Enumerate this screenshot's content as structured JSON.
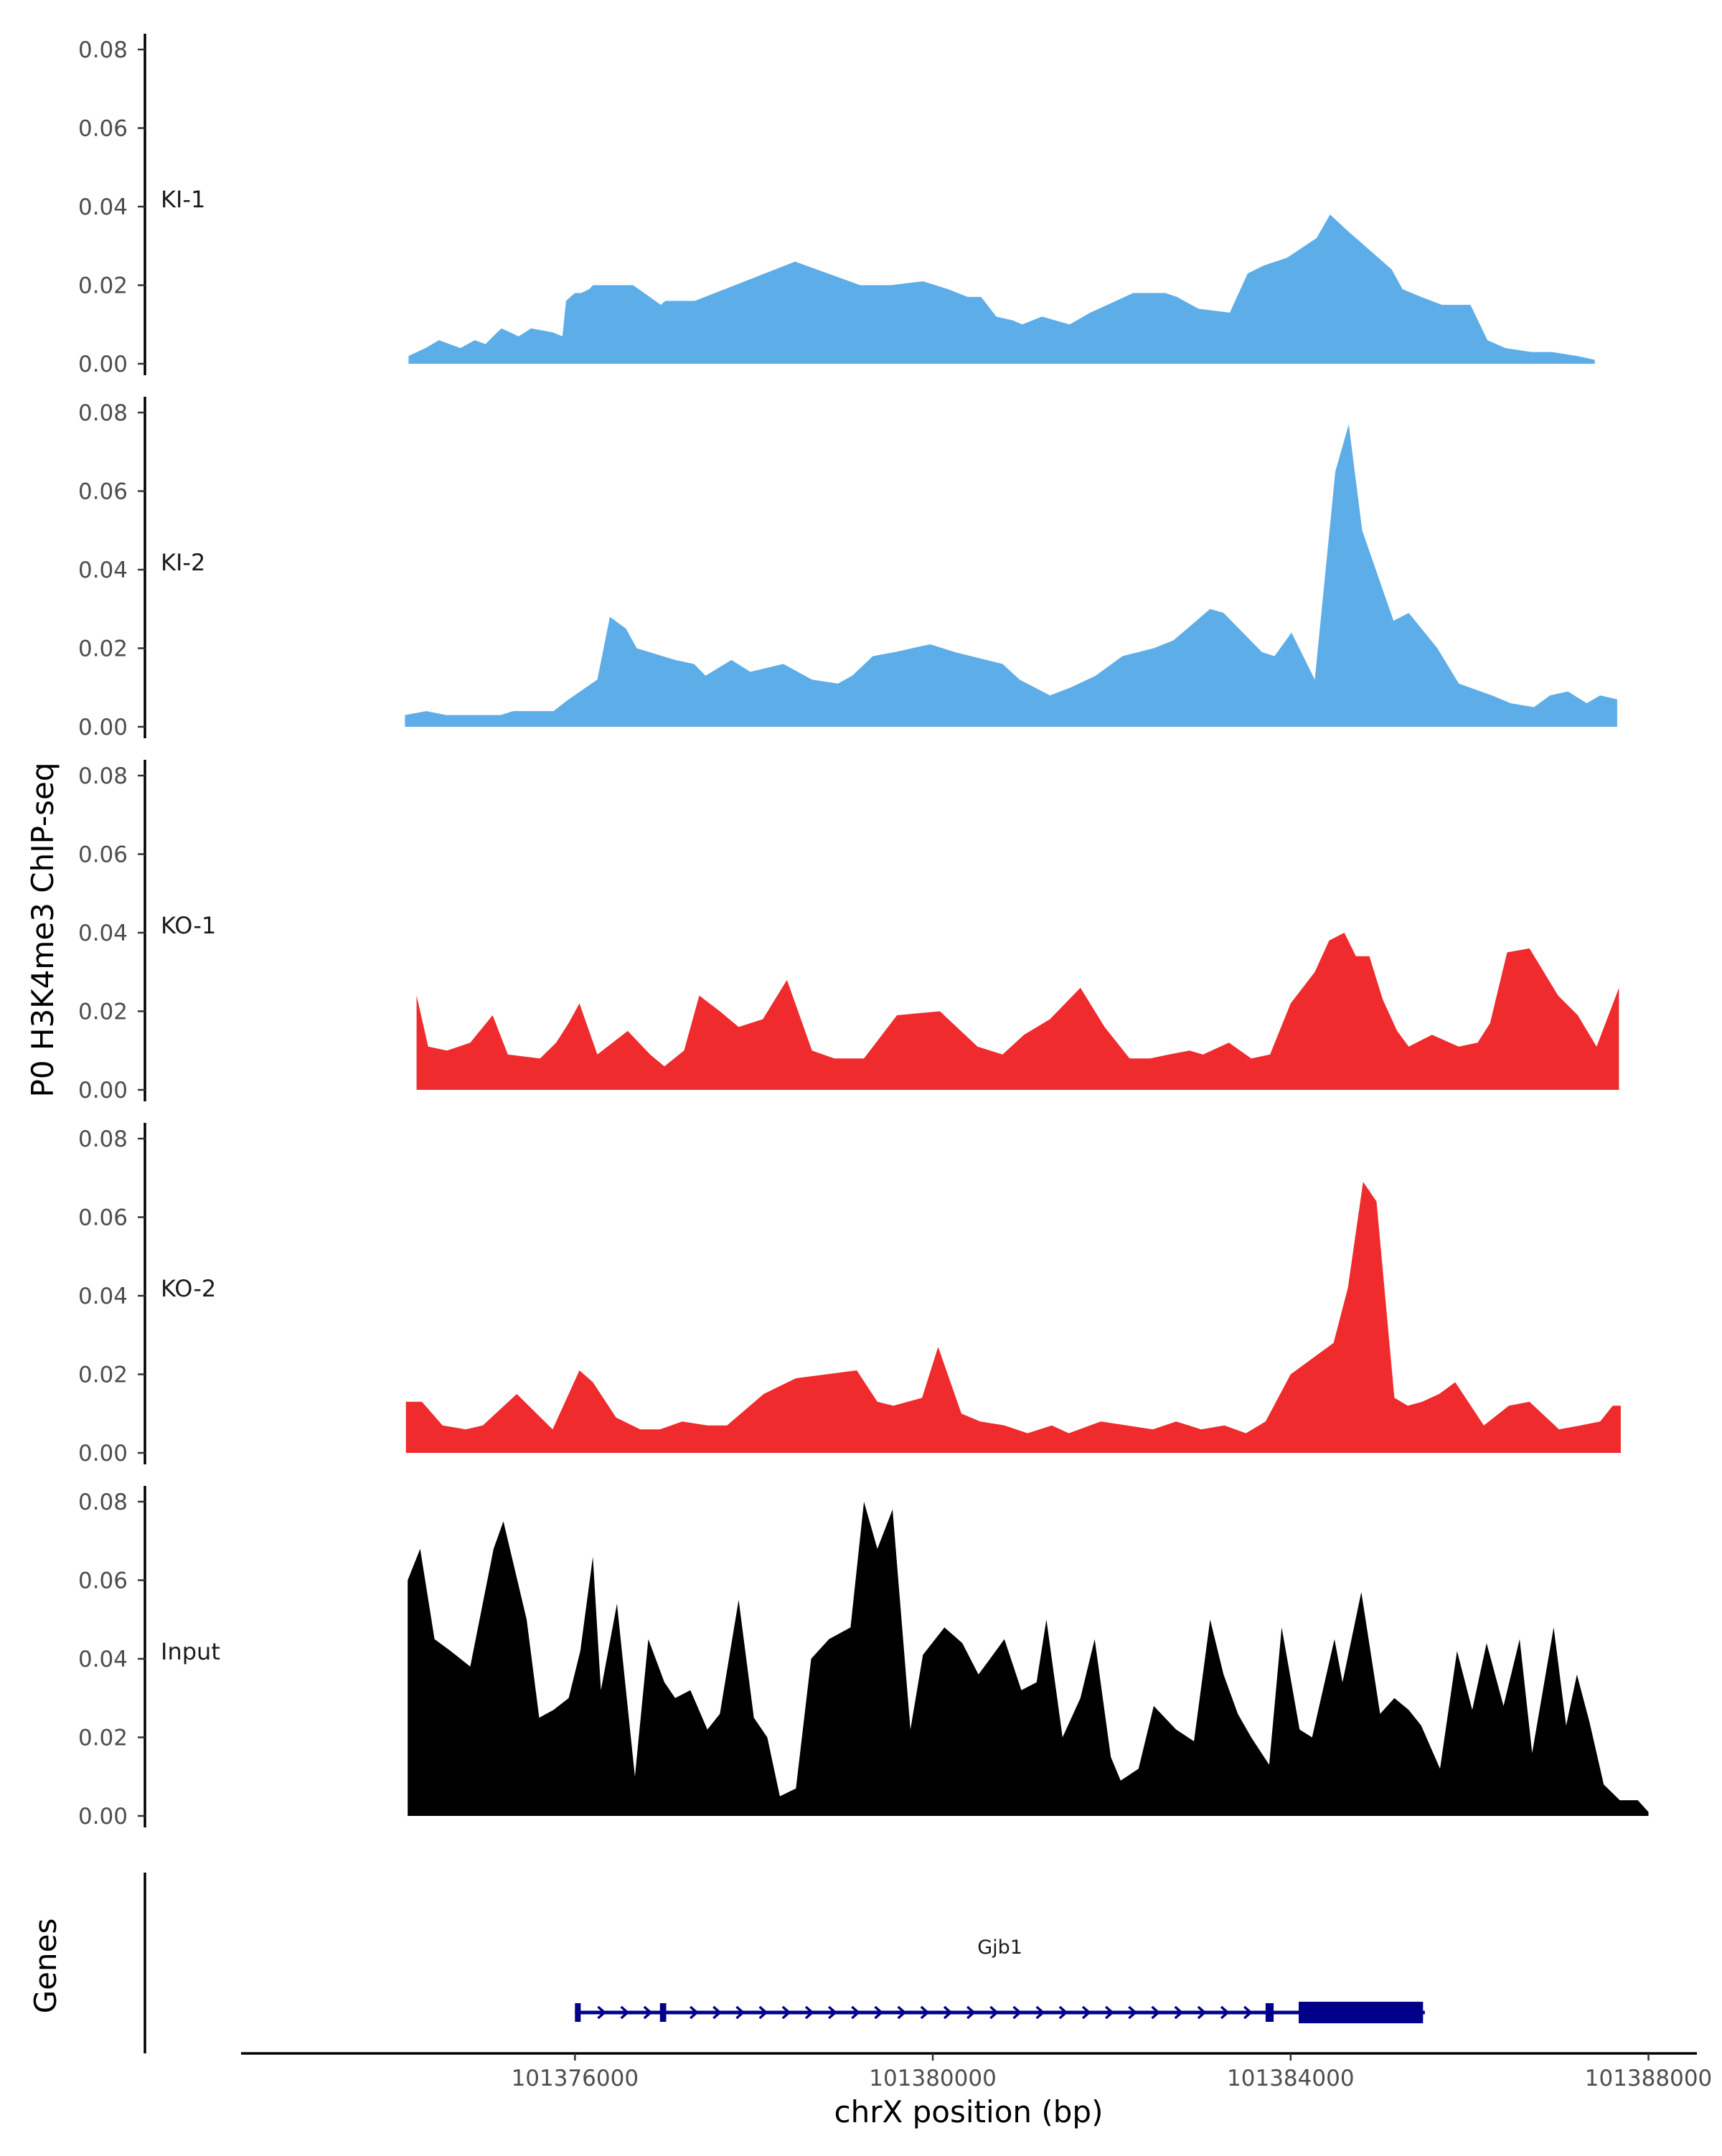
{
  "chart_data": {
    "type": "area",
    "ylabel": "P0 H3K4me3 ChIP-seq",
    "xlabel": "chrX position (bp)",
    "xlim": [
      101372300,
      101388100
    ],
    "x_ticks": [
      101376000,
      101380000,
      101384000,
      101388000
    ],
    "x_tick_labels": [
      "101376000",
      "101380000",
      "101384000",
      "101388000"
    ],
    "ylim": [
      0,
      0.082
    ],
    "y_ticks": [
      0,
      0.02,
      0.04,
      0.06,
      0.08
    ],
    "y_tick_labels": [
      "0.00",
      "0.02",
      "0.04",
      "0.06",
      "0.08"
    ],
    "colors": {
      "KI": "#5dade8",
      "KO": "#ef2b2d",
      "Input": "#000000",
      "gene": "#00008b",
      "axis": "#000000"
    },
    "tracks": [
      {
        "name": "KI-1",
        "color": "#5dade8",
        "positions": [
          101374140,
          101374330,
          101374480,
          101374720,
          101374880,
          101375000,
          101375130,
          101375180,
          101375370,
          101375510,
          101375750,
          101375860,
          101375900,
          101376000,
          101376070,
          101376160,
          101376200,
          101376230,
          101376360,
          101376650,
          101376960,
          101377010,
          101377340,
          101378460,
          101379190,
          101379530,
          101379890,
          101380170,
          101380390,
          101380540,
          101380710,
          101380900,
          101381000,
          101381220,
          101381530,
          101381760,
          101382240,
          101382600,
          101382730,
          101382970,
          101383320,
          101383520,
          101383700,
          101383960,
          101384290,
          101384440,
          101384630,
          101385130,
          101385250,
          101385460,
          101385690,
          101386010,
          101386200,
          101386400,
          101386690,
          101386920,
          101387200,
          101387400
        ],
        "values": [
          0.002,
          0.004,
          0.006,
          0.004,
          0.006,
          0.005,
          0.008,
          0.009,
          0.007,
          0.009,
          0.008,
          0.007,
          0.016,
          0.018,
          0.018,
          0.019,
          0.02,
          0.02,
          0.02,
          0.02,
          0.015,
          0.016,
          0.016,
          0.026,
          0.02,
          0.02,
          0.021,
          0.019,
          0.017,
          0.017,
          0.012,
          0.011,
          0.01,
          0.012,
          0.01,
          0.013,
          0.018,
          0.018,
          0.017,
          0.014,
          0.013,
          0.023,
          0.025,
          0.027,
          0.032,
          0.038,
          0.034,
          0.024,
          0.019,
          0.017,
          0.015,
          0.015,
          0.006,
          0.004,
          0.003,
          0.003,
          0.002,
          0.001
        ]
      },
      {
        "name": "KI-2",
        "color": "#5dade8",
        "positions": [
          101374100,
          101374340,
          101374560,
          101374930,
          101375170,
          101375310,
          101375760,
          101375930,
          101376250,
          101376390,
          101376570,
          101376690,
          101377120,
          101377330,
          101377460,
          101377750,
          101377960,
          101378330,
          101378650,
          101378940,
          101379100,
          101379330,
          101379570,
          101379970,
          101380250,
          101380780,
          101380970,
          101381310,
          101381540,
          101381820,
          101382120,
          101382470,
          101382690,
          101383100,
          101383250,
          101383680,
          101383820,
          101384010,
          101384270,
          101384500,
          101384650,
          101384800,
          101385150,
          101385320,
          101385640,
          101385880,
          101386250,
          101386460,
          101386720,
          101386900,
          101387100,
          101387310,
          101387460,
          101387650
        ],
        "values": [
          0.003,
          0.004,
          0.003,
          0.003,
          0.003,
          0.004,
          0.004,
          0.007,
          0.012,
          0.028,
          0.025,
          0.02,
          0.017,
          0.016,
          0.013,
          0.017,
          0.014,
          0.016,
          0.012,
          0.011,
          0.013,
          0.018,
          0.019,
          0.021,
          0.019,
          0.016,
          0.012,
          0.008,
          0.01,
          0.013,
          0.018,
          0.02,
          0.022,
          0.03,
          0.029,
          0.019,
          0.018,
          0.024,
          0.012,
          0.065,
          0.077,
          0.05,
          0.027,
          0.029,
          0.02,
          0.011,
          0.008,
          0.006,
          0.005,
          0.008,
          0.009,
          0.006,
          0.008,
          0.007
        ]
      },
      {
        "name": "KO-1",
        "color": "#ef2b2d",
        "positions": [
          101374230,
          101374360,
          101374570,
          101374830,
          101375080,
          101375250,
          101375610,
          101375790,
          101375930,
          101376050,
          101376250,
          101376590,
          101376840,
          101377000,
          101377220,
          101377390,
          101377620,
          101377830,
          101378100,
          101378370,
          101378650,
          101378900,
          101379230,
          101379600,
          101380080,
          101380500,
          101380780,
          101381020,
          101381310,
          101381650,
          101381920,
          101382200,
          101382430,
          101382640,
          101382870,
          101383020,
          101383310,
          101383560,
          101383770,
          101384000,
          101384270,
          101384430,
          101384600,
          101384730,
          101384880,
          101385030,
          101385190,
          101385320,
          101385580,
          101385880,
          101386090,
          101386230,
          101386420,
          101386670,
          101386990,
          101387210,
          101387420,
          101387670
        ],
        "values": [
          0.024,
          0.011,
          0.01,
          0.012,
          0.019,
          0.009,
          0.008,
          0.012,
          0.017,
          0.022,
          0.009,
          0.015,
          0.009,
          0.006,
          0.01,
          0.024,
          0.02,
          0.016,
          0.018,
          0.028,
          0.01,
          0.008,
          0.008,
          0.019,
          0.02,
          0.011,
          0.009,
          0.014,
          0.018,
          0.026,
          0.016,
          0.008,
          0.008,
          0.009,
          0.01,
          0.009,
          0.012,
          0.008,
          0.009,
          0.022,
          0.03,
          0.038,
          0.04,
          0.034,
          0.034,
          0.023,
          0.015,
          0.011,
          0.014,
          0.011,
          0.012,
          0.017,
          0.035,
          0.036,
          0.024,
          0.019,
          0.011,
          0.026
        ]
      },
      {
        "name": "KO-2",
        "color": "#ef2b2d",
        "positions": [
          101374110,
          101374290,
          101374520,
          101374780,
          101374970,
          101375350,
          101375750,
          101376050,
          101376200,
          101376460,
          101376730,
          101376950,
          101377200,
          101377480,
          101377700,
          101378110,
          101378470,
          101378810,
          101379150,
          101379380,
          101379560,
          101379880,
          101380060,
          101380320,
          101380530,
          101380800,
          101381060,
          101381330,
          101381520,
          101381880,
          101382170,
          101382460,
          101382720,
          101383000,
          101383260,
          101383500,
          101383720,
          101384000,
          101384300,
          101384480,
          101384640,
          101384810,
          101384960,
          101385160,
          101385310,
          101385470,
          101385660,
          101385840,
          101386160,
          101386440,
          101386670,
          101387000,
          101387240,
          101387460,
          101387600,
          101387690
        ],
        "values": [
          0.013,
          0.013,
          0.007,
          0.006,
          0.007,
          0.015,
          0.006,
          0.021,
          0.018,
          0.009,
          0.006,
          0.006,
          0.008,
          0.007,
          0.007,
          0.015,
          0.019,
          0.02,
          0.021,
          0.013,
          0.012,
          0.014,
          0.027,
          0.01,
          0.008,
          0.007,
          0.005,
          0.007,
          0.005,
          0.008,
          0.007,
          0.006,
          0.008,
          0.006,
          0.007,
          0.005,
          0.008,
          0.02,
          0.025,
          0.028,
          0.042,
          0.069,
          0.064,
          0.014,
          0.012,
          0.013,
          0.015,
          0.018,
          0.007,
          0.012,
          0.013,
          0.006,
          0.007,
          0.008,
          0.012,
          0.012
        ]
      },
      {
        "name": "Input",
        "color": "#000000",
        "positions": [
          101374130,
          101374270,
          101374430,
          101374610,
          101374830,
          101375090,
          101375200,
          101375460,
          101375600,
          101375760,
          101375930,
          101376060,
          101376200,
          101376290,
          101376470,
          101376670,
          101376820,
          101377000,
          101377120,
          101377290,
          101377480,
          101377620,
          101377830,
          101378000,
          101378150,
          101378290,
          101378470,
          101378640,
          101378840,
          101379080,
          101379230,
          101379380,
          101379550,
          101379750,
          101379890,
          101380130,
          101380330,
          101380510,
          101380640,
          101380800,
          101380990,
          101381160,
          101381270,
          101381450,
          101381650,
          101381810,
          101381990,
          101382100,
          101382300,
          101382470,
          101382720,
          101382920,
          101383100,
          101383250,
          101383410,
          101383560,
          101383760,
          101383900,
          101384100,
          101384240,
          101384490,
          101384580,
          101384790,
          101385000,
          101385160,
          101385320,
          101385460,
          101385670,
          101385860,
          101386030,
          101386190,
          101386380,
          101386560,
          101386700,
          101386940,
          101387080,
          101387200,
          101387340,
          101387500,
          101387680,
          101387880,
          101388000
        ],
        "values": [
          0.06,
          0.068,
          0.045,
          0.042,
          0.038,
          0.068,
          0.075,
          0.05,
          0.025,
          0.027,
          0.03,
          0.042,
          0.066,
          0.032,
          0.054,
          0.01,
          0.045,
          0.034,
          0.03,
          0.032,
          0.022,
          0.026,
          0.055,
          0.025,
          0.02,
          0.005,
          0.007,
          0.04,
          0.045,
          0.048,
          0.08,
          0.068,
          0.078,
          0.022,
          0.041,
          0.048,
          0.044,
          0.036,
          0.04,
          0.045,
          0.032,
          0.034,
          0.05,
          0.02,
          0.03,
          0.045,
          0.015,
          0.009,
          0.012,
          0.028,
          0.022,
          0.019,
          0.05,
          0.036,
          0.026,
          0.02,
          0.013,
          0.048,
          0.022,
          0.02,
          0.045,
          0.034,
          0.057,
          0.026,
          0.03,
          0.027,
          0.023,
          0.012,
          0.042,
          0.027,
          0.044,
          0.028,
          0.045,
          0.016,
          0.048,
          0.023,
          0.036,
          0.024,
          0.008,
          0.004,
          0.004,
          0.001
        ]
      }
    ],
    "genes": {
      "label": "Genes",
      "gene_name": "Gjb1",
      "start": 101376000,
      "end": 101385500,
      "strand": "+",
      "exons": [
        {
          "start": 101376000,
          "end": 101376060
        },
        {
          "start": 101376950,
          "end": 101377020
        },
        {
          "start": 101383720,
          "end": 101383810
        }
      ],
      "cds": [
        {
          "start": 101384090,
          "end": 101385480
        }
      ]
    }
  }
}
